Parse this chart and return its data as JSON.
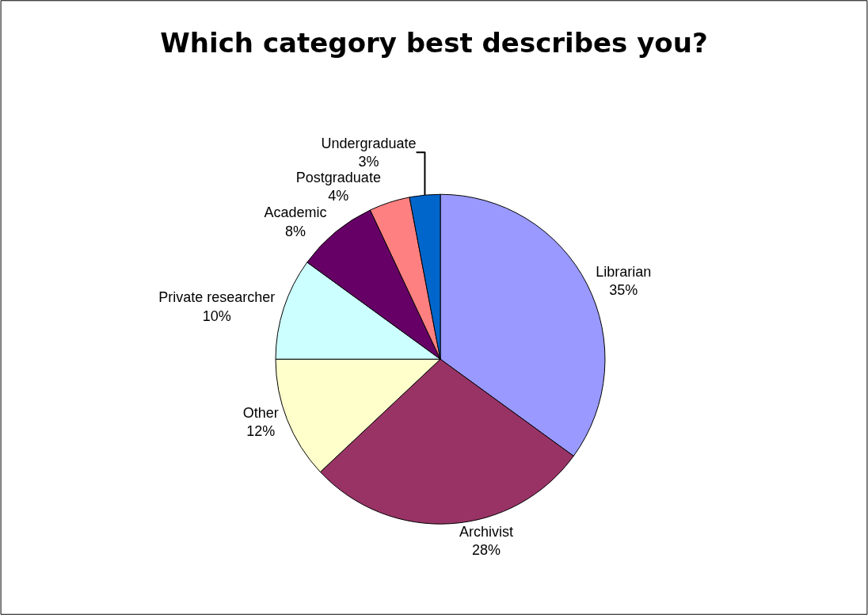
{
  "chart_data": {
    "type": "pie",
    "title": "Which category best describes you?",
    "categories": [
      "Librarian",
      "Archivist",
      "Other",
      "Private researcher",
      "Academic",
      "Postgraduate",
      "Undergraduate"
    ],
    "values": [
      35,
      28,
      12,
      10,
      8,
      4,
      3
    ],
    "value_labels": [
      "35%",
      "28%",
      "12%",
      "10%",
      "8%",
      "4%",
      "3%"
    ],
    "colors": [
      "#9999ff",
      "#993366",
      "#ffffcc",
      "#ccffff",
      "#660066",
      "#ff8080",
      "#0066cc"
    ],
    "legend": false
  }
}
